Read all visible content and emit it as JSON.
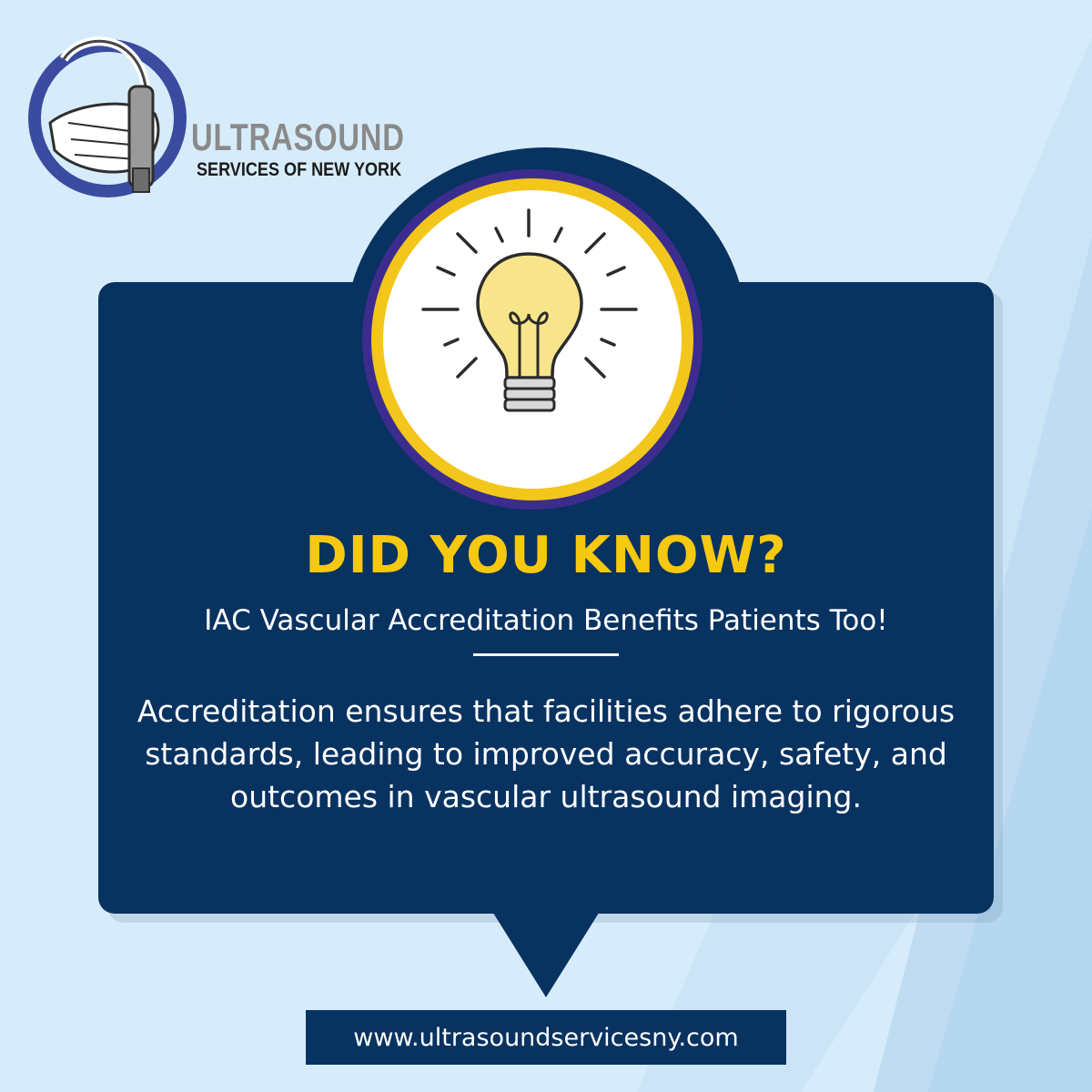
{
  "colors": {
    "background": "#d6ecfa",
    "navy": "#083260",
    "yellow": "#f6c80f",
    "purple": "#3c2c8e",
    "white": "#ffffff",
    "logo_grey": "#8a8a8a"
  },
  "logo": {
    "line1": "ULTRASOUND",
    "line2": "SERVICES OF NEW YORK",
    "icon": "hand-holding-ultrasound-probe-icon"
  },
  "medallion": {
    "icon": "lightbulb-icon"
  },
  "headline": "DID YOU KNOW?",
  "subheadline": "IAC Vascular Accreditation Benefits Patients Too!",
  "body_text": "Accreditation ensures that facilities adhere to rigorous standards, leading to improved accuracy, safety, and outcomes in vascular ultrasound imaging.",
  "website": "www.ultrasoundservicesny.com"
}
